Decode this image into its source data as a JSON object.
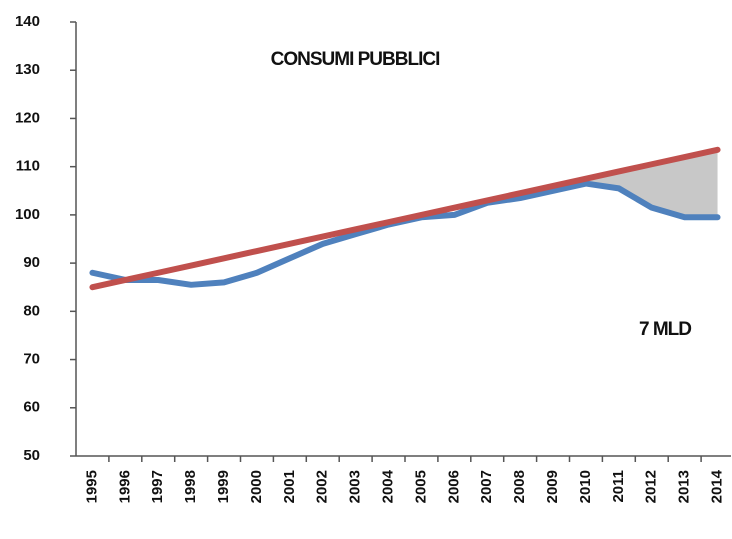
{
  "chart_data": {
    "type": "line",
    "title": "CONSUMI PUBBLICI",
    "annotation": "7 MLD",
    "categories": [
      "1995",
      "1996",
      "1997",
      "1998",
      "1999",
      "2000",
      "2001",
      "2002",
      "2003",
      "2004",
      "2005",
      "2006",
      "2007",
      "2008",
      "2009",
      "2010",
      "2011",
      "2012",
      "2013",
      "2014"
    ],
    "series": [
      {
        "color": "#4f81bd",
        "values": [
          88,
          86.5,
          86.5,
          85.5,
          86,
          88,
          91,
          94,
          96,
          98,
          99.5,
          100,
          102.5,
          103.5,
          105,
          106.5,
          105.5,
          101.5,
          99.5,
          99.5
        ]
      },
      {
        "color": "#c0504d",
        "values": [
          85,
          86.5,
          88,
          89.5,
          91,
          92.5,
          94,
          95.5,
          97,
          98.5,
          100,
          101.5,
          103,
          104.5,
          106,
          107.5,
          109,
          110.5,
          112,
          113.5
        ]
      }
    ],
    "fill_color": "#c8c8c8",
    "ylim": [
      50,
      140
    ],
    "yticks": [
      50,
      60,
      70,
      80,
      90,
      100,
      110,
      120,
      130,
      140
    ]
  }
}
